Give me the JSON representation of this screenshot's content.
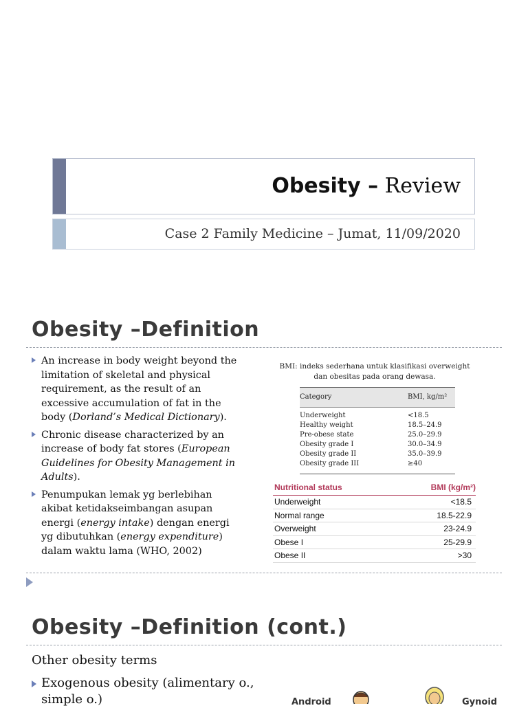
{
  "title_slide": {
    "title_bold": "Obesity –",
    "title_rest": " Review",
    "subtitle": "Case 2 Family Medicine – Jumat, 11/09/2020"
  },
  "definition_slide": {
    "heading": "Obesity –Definition",
    "bullets": [
      {
        "text": "An increase in body weight beyond the limitation of skeletal and physical requirement, as the result of an excessive accumulation of fat in the body (",
        "italic": "Dorland’s Medical Dictionary",
        "tail": ")."
      },
      {
        "text": "Chronic disease characterized by an increase of body fat stores (",
        "italic": "European Guidelines for Obesity Management in Adults",
        "tail": ")."
      },
      {
        "text": "Penumpukan lemak yg berlebihan akibat ketidakseimbangan asupan energi (",
        "italic1": "energy intake",
        "mid": ") dengan energi yg dibutuhkan (",
        "italic2": "energy expenditure",
        "tail": ") dalam waktu lama (WHO, 2002)"
      }
    ],
    "bmi_caption": "BMI: indeks sederhana untuk klasifikasi overweight dan obesitas pada orang dewasa.",
    "table1": {
      "header": [
        "Category",
        "BMI, kg/m²"
      ],
      "rows": [
        [
          "Underweight",
          "<18.5"
        ],
        [
          "Healthy weight",
          "18.5–24.9"
        ],
        [
          "Pre-obese state",
          "25.0–29.9"
        ],
        [
          "Obesity grade I",
          "30.0–34.9"
        ],
        [
          "Obesity grade II",
          "35.0–39.9"
        ],
        [
          "Obesity grade III",
          "≥40"
        ]
      ]
    },
    "table2": {
      "header": [
        "Nutritional status",
        "BMI (kg/m²)"
      ],
      "rows": [
        [
          "Underweight",
          "<18.5"
        ],
        [
          "Normal range",
          "18.5-22.9"
        ],
        [
          "Overweight",
          "23-24.9"
        ],
        [
          "Obese I",
          "25-29.9"
        ],
        [
          "Obese II",
          ">30"
        ]
      ]
    }
  },
  "cont_slide": {
    "heading": "Obesity –Definition (cont.)",
    "intro": "Other obesity terms",
    "bullets": [
      {
        "text": "Exogenous obesity (alimentary o., simple o.)"
      }
    ],
    "figure_labels": [
      "Android",
      "Gynoid"
    ]
  }
}
